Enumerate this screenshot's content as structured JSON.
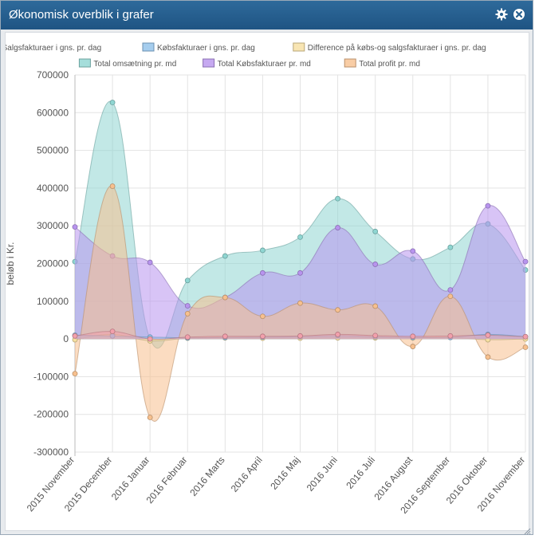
{
  "window": {
    "title": "Økonomisk overblik i grafer",
    "settings_icon": "gear-icon",
    "close_icon": "close-circle-icon"
  },
  "chart_data": {
    "type": "area",
    "ylabel": "beløb i Kr.",
    "xlabel": "",
    "ylim": [
      -300000,
      700000
    ],
    "yticks": [
      700000,
      600000,
      500000,
      400000,
      300000,
      200000,
      100000,
      0,
      -100000,
      -200000,
      -300000
    ],
    "grid": true,
    "legend_position": "top",
    "categories": [
      "2015 November",
      "2015 December",
      "2016 Januar",
      "2016 Februar",
      "2016 Marts",
      "2016 April",
      "2016 Maj",
      "2016 Juni",
      "2016 Juli",
      "2016 August",
      "2016 September",
      "2016 Oktober",
      "2016 November"
    ],
    "series": [
      {
        "name": "Salgsfakturaer i gns. pr. dag",
        "color": "#f2a0ac",
        "values": [
          8000,
          20000,
          0,
          5000,
          7000,
          7000,
          8000,
          12000,
          9000,
          7000,
          8000,
          10000,
          6000
        ]
      },
      {
        "name": "Købsfakturaer i gns. pr. dag",
        "color": "#8ec0ea",
        "values": [
          10000,
          8000,
          5000,
          3000,
          4000,
          5000,
          6000,
          9000,
          6000,
          4000,
          4000,
          12000,
          6000
        ]
      },
      {
        "name": "Difference på købs-og salgsfakturaer i gns. pr. dag",
        "color": "#f6dfa0",
        "values": [
          -2000,
          12000,
          -5000,
          2000,
          3000,
          2000,
          2000,
          3000,
          3000,
          3000,
          4000,
          -2000,
          0
        ]
      },
      {
        "name": "Total omsætning pr. md",
        "color": "#8fd6d2",
        "values": [
          205000,
          627000,
          0,
          155000,
          220000,
          235000,
          270000,
          372000,
          285000,
          212000,
          243000,
          305000,
          183000
        ]
      },
      {
        "name": "Total Købsfakturaer pr. md",
        "color": "#b894ee",
        "values": [
          297000,
          220000,
          203000,
          88000,
          110000,
          175000,
          175000,
          295000,
          198000,
          233000,
          130000,
          353000,
          205000
        ]
      },
      {
        "name": "Total profit pr. md",
        "color": "#f7c08e",
        "values": [
          -92000,
          405000,
          -208000,
          67000,
          110000,
          60000,
          95000,
          77000,
          87000,
          -20000,
          113000,
          -48000,
          -22000
        ]
      }
    ]
  }
}
